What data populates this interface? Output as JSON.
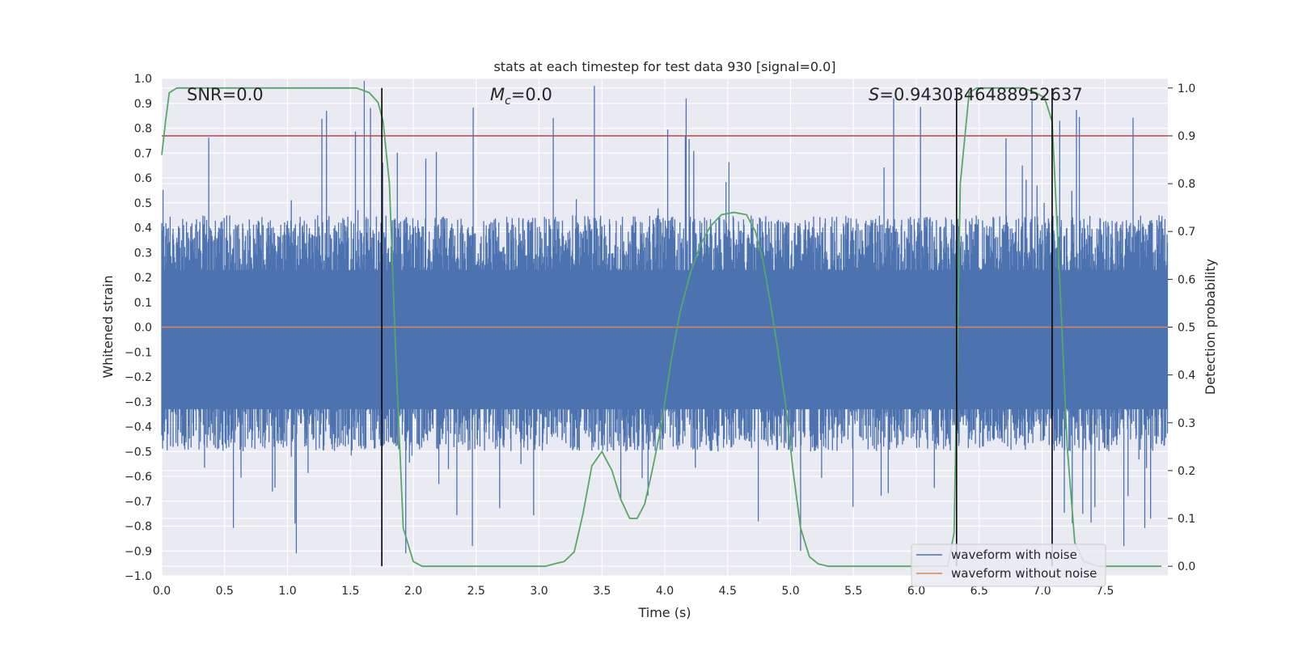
{
  "chart_data": {
    "type": "line",
    "title": "stats at each timestep for test data 930 [signal=0.0]",
    "xlabel": "Time (s)",
    "ylabel_left": "Whitened strain",
    "ylabel_right": "Detection probability",
    "xlim": [
      0.0,
      8.0
    ],
    "ylim_left": [
      -1.0,
      1.0
    ],
    "ylim_right": [
      -0.02,
      1.02
    ],
    "x_ticks": [
      "0.0",
      "0.5",
      "1.0",
      "1.5",
      "2.0",
      "2.5",
      "3.0",
      "3.5",
      "4.0",
      "4.5",
      "5.0",
      "5.5",
      "6.0",
      "6.5",
      "7.0",
      "7.5"
    ],
    "y_ticks_left": [
      "1.0",
      "0.9",
      "0.8",
      "0.7",
      "0.6",
      "0.5",
      "0.4",
      "0.3",
      "0.2",
      "0.1",
      "0.0",
      "−0.1",
      "−0.2",
      "−0.3",
      "−0.4",
      "−0.5",
      "−0.6",
      "−0.7",
      "−0.8",
      "−0.9",
      "−1.0"
    ],
    "y_ticks_right": [
      "1.0",
      "0.9",
      "0.8",
      "0.7",
      "0.6",
      "0.5",
      "0.4",
      "0.3",
      "0.2",
      "0.1",
      "0.0"
    ],
    "grid": true,
    "annotations": {
      "snr": "SNR=0.0",
      "mc_symbol": "M",
      "mc_sub": "c",
      "mc_value": "=0.0",
      "s_symbol": "S",
      "s_value": "=0.9430346488952637"
    },
    "threshold": {
      "name": "detection threshold",
      "value": 0.9,
      "color": "#c44e52"
    },
    "vertical_markers": [
      1.75,
      6.32,
      7.08
    ],
    "series": [
      {
        "name": "waveform with noise",
        "color": "#4c72b0",
        "axis": "left",
        "envelope": {
          "typical_min": -0.5,
          "typical_max": 0.45,
          "peak_min": -0.91,
          "peak_max": 1.0
        },
        "noted_peaks": [
          {
            "x": 1.31,
            "y": 0.87
          },
          {
            "x": 1.61,
            "y": 0.99
          },
          {
            "x": 3.44,
            "y": 0.97
          },
          {
            "x": 4.17,
            "y": 0.92
          },
          {
            "x": 5.82,
            "y": 0.92
          },
          {
            "x": 6.92,
            "y": 0.91
          },
          {
            "x": 7.14,
            "y": 0.83
          },
          {
            "x": 1.07,
            "y": -0.91
          },
          {
            "x": 1.94,
            "y": -0.91
          },
          {
            "x": 2.47,
            "y": -0.88
          },
          {
            "x": 5.08,
            "y": -0.9
          },
          {
            "x": 7.65,
            "y": -0.88
          }
        ]
      },
      {
        "name": "waveform without noise",
        "color": "#dd8452",
        "axis": "left",
        "x": [
          0.0,
          8.0
        ],
        "y": [
          0.0,
          0.0
        ]
      },
      {
        "name": "detection probability",
        "color": "#55a868",
        "axis": "right",
        "x": [
          0.0,
          0.03,
          0.06,
          0.12,
          0.2,
          0.4,
          0.6,
          0.8,
          1.0,
          1.2,
          1.4,
          1.55,
          1.65,
          1.72,
          1.76,
          1.81,
          1.86,
          1.92,
          2.0,
          2.07,
          2.15,
          2.3,
          2.5,
          2.7,
          2.9,
          3.05,
          3.12,
          3.2,
          3.28,
          3.35,
          3.42,
          3.5,
          3.58,
          3.65,
          3.72,
          3.78,
          3.84,
          3.9,
          3.97,
          4.05,
          4.12,
          4.2,
          4.28,
          4.36,
          4.45,
          4.55,
          4.65,
          4.72,
          4.78,
          4.84,
          4.9,
          4.96,
          5.02,
          5.08,
          5.15,
          5.22,
          5.3,
          5.5,
          5.8,
          6.1,
          6.2,
          6.25,
          6.3,
          6.35,
          6.42,
          6.48,
          6.55,
          6.7,
          6.85,
          6.95,
          7.02,
          7.08,
          7.14,
          7.2,
          7.26,
          7.33,
          7.45,
          7.6,
          7.8,
          7.95
        ],
        "y": [
          0.86,
          0.93,
          0.99,
          1.0,
          1.0,
          1.0,
          1.0,
          1.0,
          1.0,
          1.0,
          1.0,
          1.0,
          0.99,
          0.97,
          0.93,
          0.8,
          0.45,
          0.08,
          0.01,
          0.0,
          0.0,
          0.0,
          0.0,
          0.0,
          0.0,
          0.0,
          0.005,
          0.01,
          0.03,
          0.11,
          0.21,
          0.24,
          0.2,
          0.14,
          0.1,
          0.1,
          0.13,
          0.2,
          0.29,
          0.43,
          0.53,
          0.61,
          0.67,
          0.71,
          0.735,
          0.74,
          0.735,
          0.7,
          0.64,
          0.55,
          0.45,
          0.34,
          0.2,
          0.08,
          0.02,
          0.005,
          0.0,
          0.0,
          0.0,
          0.0,
          0.0,
          0.0,
          0.07,
          0.8,
          0.99,
          1.0,
          1.0,
          1.0,
          1.0,
          0.99,
          0.98,
          0.93,
          0.6,
          0.25,
          0.05,
          0.01,
          0.0,
          0.0,
          0.0,
          0.0
        ]
      }
    ],
    "legend": {
      "placement": "bottom-right",
      "entries": [
        {
          "label": "waveform with noise",
          "color": "#4c72b0"
        },
        {
          "label": "waveform without noise",
          "color": "#dd8452"
        }
      ]
    }
  }
}
